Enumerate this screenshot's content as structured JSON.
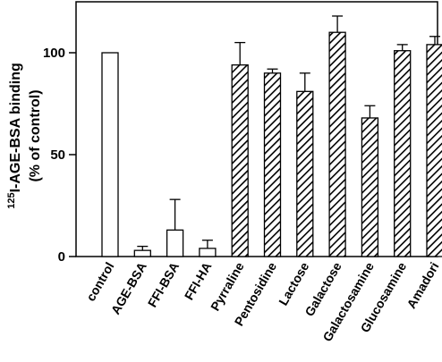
{
  "chart_data": {
    "type": "bar",
    "title": "",
    "ylabel_line1_sup": "125",
    "ylabel_line1_rest": "I-AGE-BSA binding",
    "ylabel_line2": "(% of control)",
    "xlabel": "",
    "ylim": [
      0,
      125
    ],
    "yticks": [
      0,
      50,
      100
    ],
    "ytick_labels": [
      "0",
      "50",
      "100"
    ],
    "categories": [
      "control",
      "AGE-BSA",
      "FFI-BSA",
      "FFI-HA",
      "Pyrraline",
      "Pentosidine",
      "Lactose",
      "Galactose",
      "Galactosamine",
      "Glucosamine",
      "Amadori"
    ],
    "values": [
      100,
      3,
      13,
      4,
      94,
      90,
      81,
      110,
      68,
      101,
      104
    ],
    "errors": [
      0,
      2,
      15,
      4,
      11,
      2,
      9,
      8,
      6,
      3,
      4
    ],
    "fill": [
      "open",
      "open",
      "open",
      "open",
      "hatched",
      "hatched",
      "hatched",
      "hatched",
      "hatched",
      "hatched",
      "hatched"
    ],
    "colors": {
      "bar_stroke": "#000000",
      "bar_open_fill": "#ffffff",
      "hatch": "#000000"
    }
  }
}
